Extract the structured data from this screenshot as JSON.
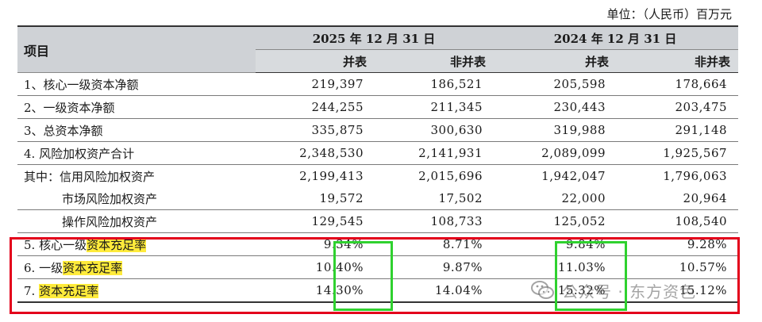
{
  "unit_label": "单位：（人民币）百万元",
  "header": {
    "item": "项目",
    "year_2025": "2025 年 12 月 31 日",
    "year_2024": "2024 年 12 月 31 日",
    "consolidated": "并表",
    "non_consolidated": "非并表"
  },
  "rows": [
    {
      "label": "1、核心一级资本净额",
      "c2025": "219,397",
      "n2025": "186,521",
      "c2024": "205,598",
      "n2024": "178,664"
    },
    {
      "label": "2、一级资本净额",
      "c2025": "244,255",
      "n2025": "211,345",
      "c2024": "230,443",
      "n2024": "203,475"
    },
    {
      "label": "3、总资本净额",
      "c2025": "335,875",
      "n2025": "300,630",
      "c2024": "319,988",
      "n2024": "291,148"
    },
    {
      "label": "4. 风险加权资产合计",
      "c2025": "2,348,530",
      "n2025": "2,141,931",
      "c2024": "2,089,099",
      "n2024": "1,925,567"
    },
    {
      "label": "其中：信用风险加权资产",
      "c2025": "2,199,413",
      "n2025": "2,015,696",
      "c2024": "1,942,047",
      "n2024": "1,796,063"
    },
    {
      "label": "市场风险加权资产",
      "c2025": "19,572",
      "n2025": "17,502",
      "c2024": "22,000",
      "n2024": "20,964"
    },
    {
      "label": "操作风险加权资产",
      "c2025": "129,545",
      "n2025": "108,733",
      "c2024": "125,052",
      "n2024": "108,540"
    },
    {
      "label_prefix": "5. 核心一级",
      "label_hl": "资本充足率",
      "c2025": "9.34%",
      "n2025": "8.71%",
      "c2024": "9.84%",
      "n2024": "9.28%"
    },
    {
      "label_prefix": "6. 一级",
      "label_hl": "资本充足率",
      "c2025": "10.40%",
      "n2025": "9.87%",
      "c2024": "11.03%",
      "n2024": "10.57%"
    },
    {
      "label_prefix": "7. ",
      "label_hl": "资本充足率",
      "c2025": "14.30%",
      "n2025": "14.04%",
      "c2024": "15.32%",
      "n2024": "15.12%"
    }
  ],
  "watermark": "公众号 · 东方资色",
  "colors": {
    "highlight": "#ffeb3b",
    "red_box": "#e3001b",
    "green_box": "#2fd12f",
    "header_bg": "#cfd2d6"
  },
  "icons": {
    "watermark_logo": "wechat-icon"
  }
}
